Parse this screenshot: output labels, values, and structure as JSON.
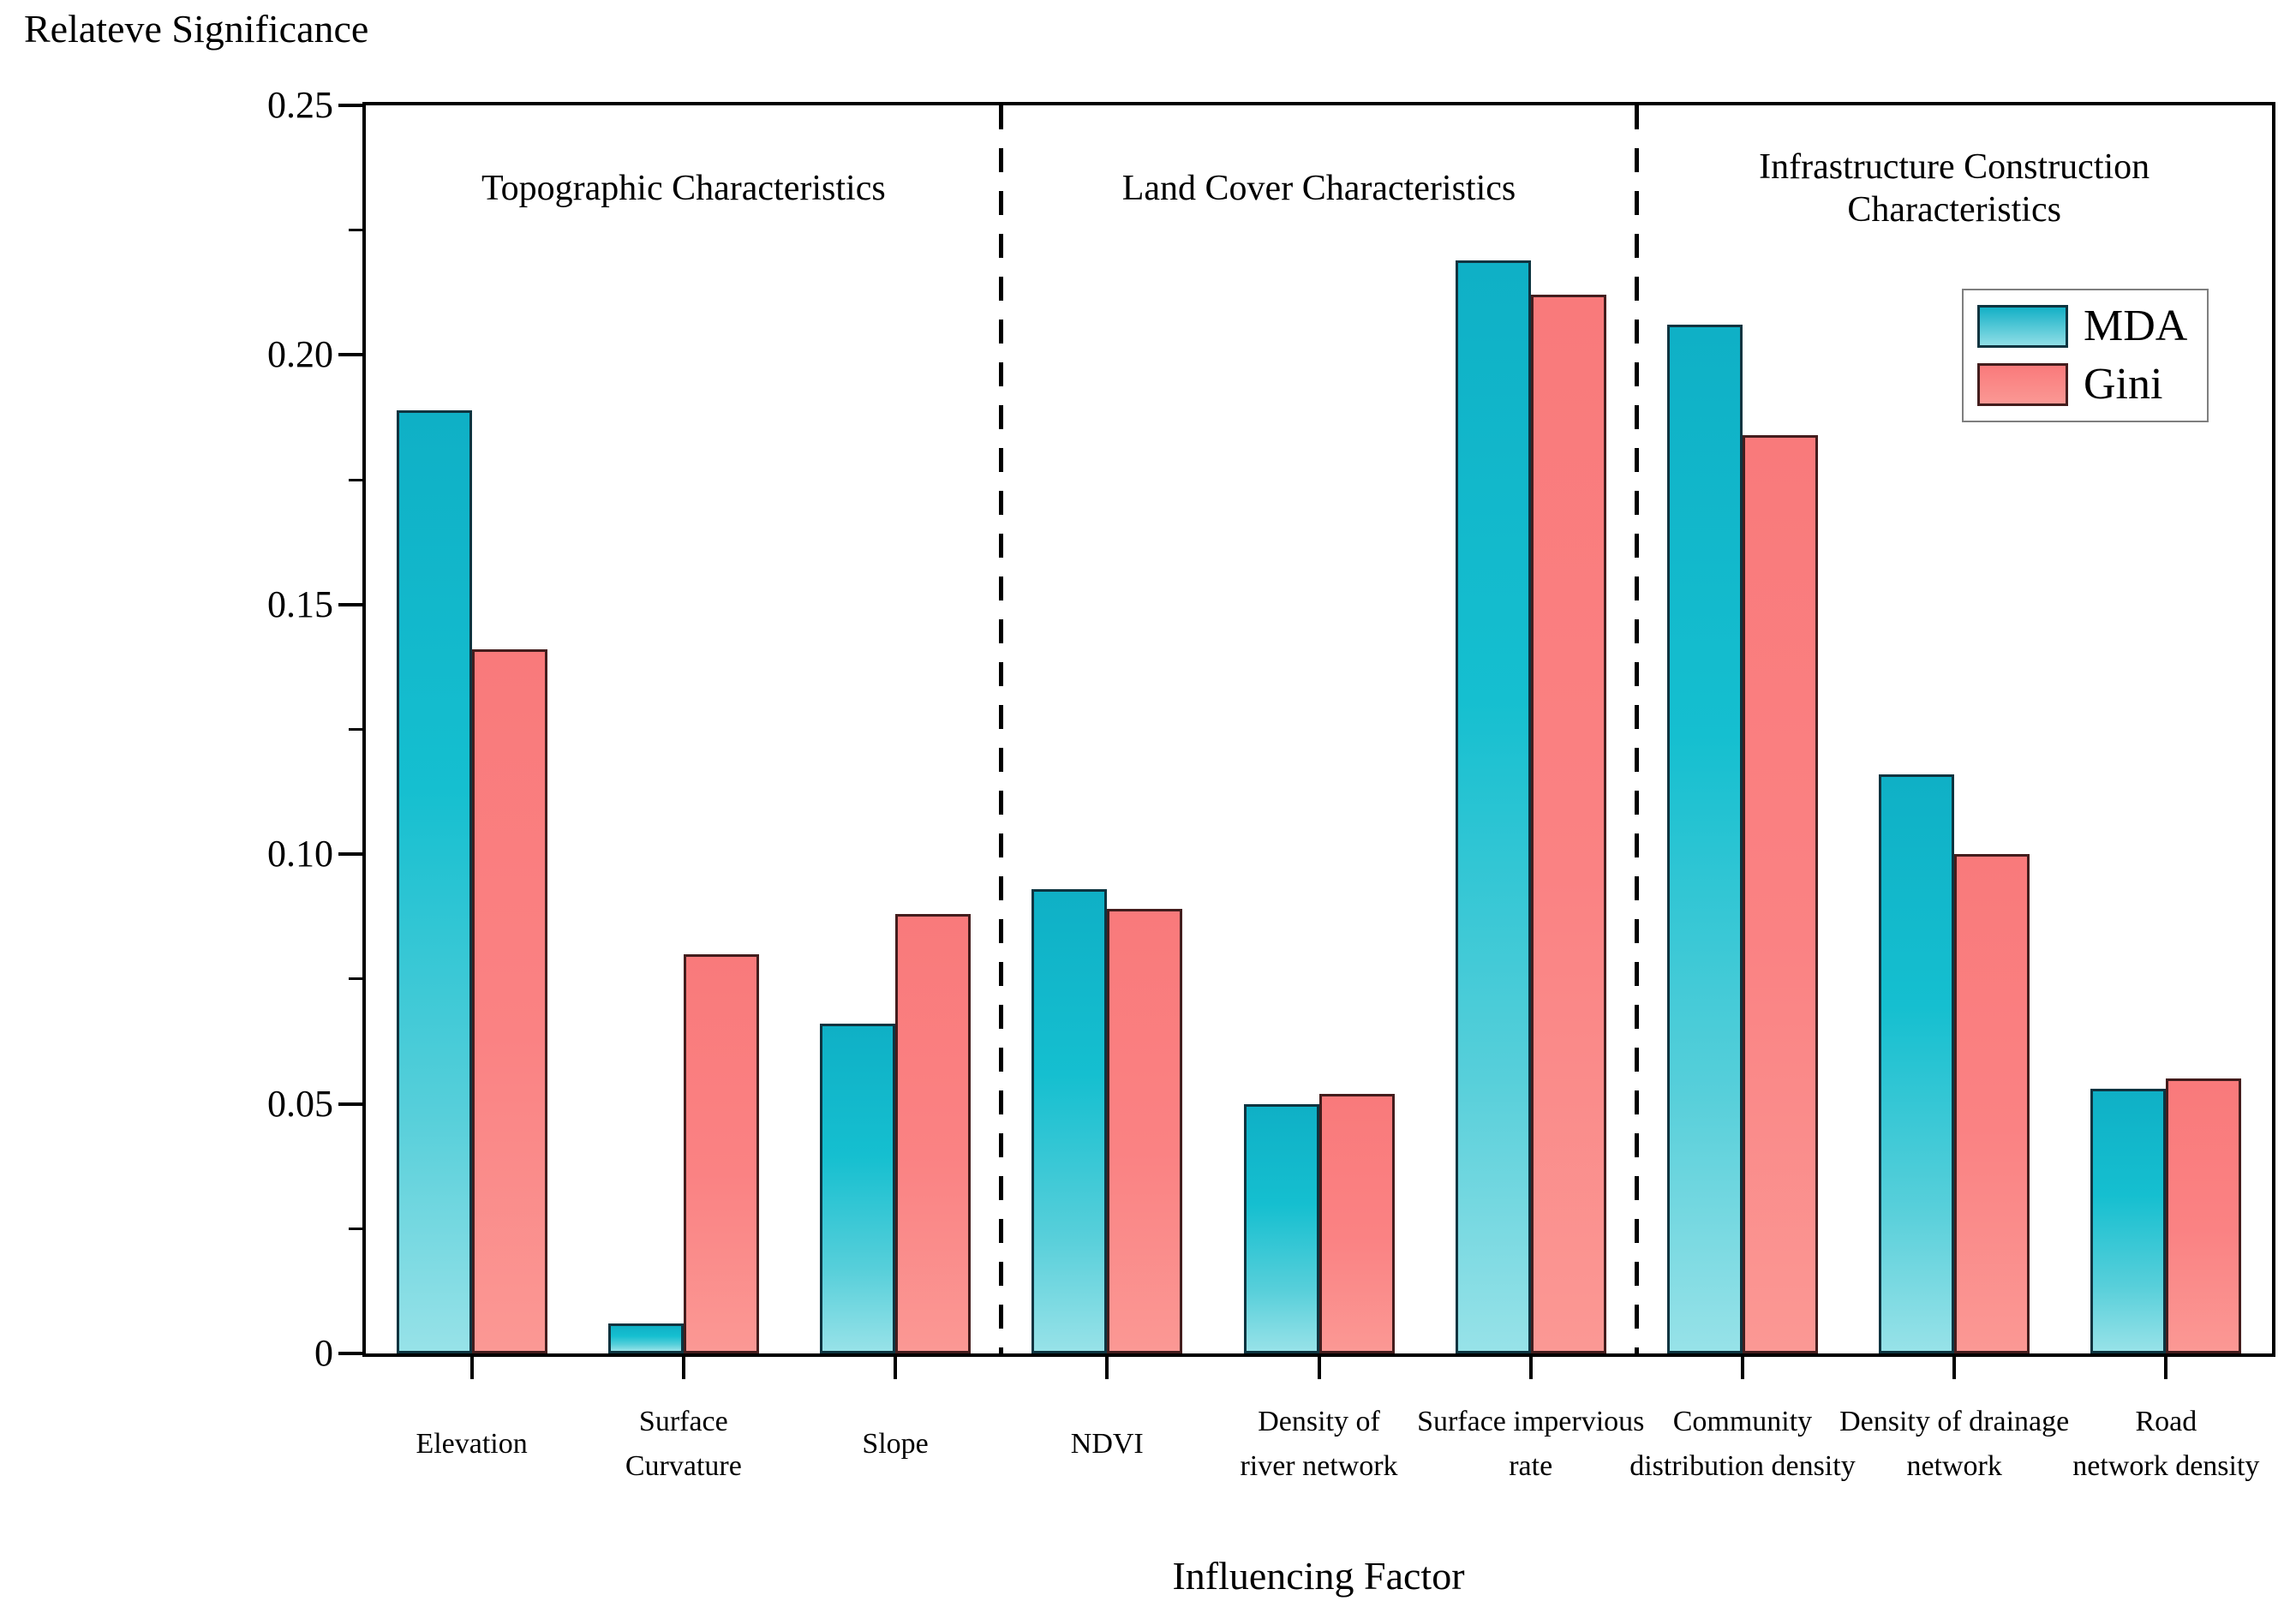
{
  "page": {
    "background": "#ffffff"
  },
  "y_axis": {
    "title": "Relateve Significance",
    "tick_values": [
      0,
      0.05,
      0.1,
      0.15,
      0.2,
      0.25
    ],
    "tick_labels": [
      "0",
      "0.05",
      "0.10",
      "0.15",
      "0.20",
      "0.25"
    ],
    "minor_tick_values": [
      0.025,
      0.075,
      0.125,
      0.175,
      0.225
    ]
  },
  "x_axis": {
    "title": "Influencing Factor"
  },
  "legend": {
    "items": [
      {
        "label": "MDA",
        "fill_top": "#14b0c6",
        "fill_bottom": "#8fdee6",
        "stroke": "#0e3440"
      },
      {
        "label": "Gini",
        "fill_top": "#f97a7b",
        "fill_bottom": "#fb9894",
        "stroke": "#431d1d"
      }
    ]
  },
  "sections": [
    {
      "title_lines": [
        "Topographic Characteristics"
      ],
      "category_range": [
        0,
        2
      ]
    },
    {
      "title_lines": [
        "Land Cover Characteristics"
      ],
      "category_range": [
        3,
        5
      ]
    },
    {
      "title_lines": [
        "Infrastructure Construction",
        "Characteristics"
      ],
      "category_range": [
        6,
        8
      ]
    }
  ],
  "chart_data": {
    "type": "bar",
    "title": "",
    "xlabel": "Influencing Factor",
    "ylabel": "Relateve Significance",
    "ylim": [
      0,
      0.25
    ],
    "grid": false,
    "legend_position": "upper-right-inside",
    "categories": [
      "Elevation",
      "Surface Curvature",
      "Slope",
      "NDVI",
      "Density of river network",
      "Surface impervious rate",
      "Community distribution density",
      "Density of drainage network",
      "Road network density"
    ],
    "category_label_lines": [
      [
        "Elevation"
      ],
      [
        "Surface",
        "Curvature"
      ],
      [
        "Slope"
      ],
      [
        "NDVI"
      ],
      [
        "Density of",
        "river network"
      ],
      [
        "Surface impervious",
        "rate"
      ],
      [
        "Community",
        "distribution density"
      ],
      [
        "Density of drainage",
        "network"
      ],
      [
        "Road",
        "network density"
      ]
    ],
    "series": [
      {
        "name": "MDA",
        "color": "#14b0c6",
        "values": [
          0.189,
          0.006,
          0.066,
          0.093,
          0.05,
          0.219,
          0.206,
          0.116,
          0.053
        ]
      },
      {
        "name": "Gini",
        "color": "#f97a7b",
        "values": [
          0.141,
          0.08,
          0.088,
          0.089,
          0.052,
          0.212,
          0.184,
          0.1,
          0.055
        ]
      }
    ],
    "group_separators_after_category_index": [
      2,
      5
    ]
  }
}
